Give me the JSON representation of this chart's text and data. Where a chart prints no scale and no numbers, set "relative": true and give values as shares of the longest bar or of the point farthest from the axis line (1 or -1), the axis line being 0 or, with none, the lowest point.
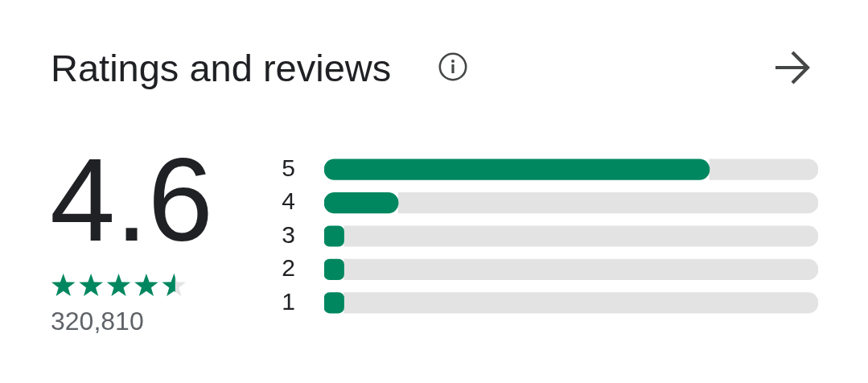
{
  "chart_data": {
    "type": "bar",
    "orientation": "horizontal",
    "stacked": true,
    "relative": true,
    "title": "Ratings and reviews",
    "categories": [
      "5",
      "4",
      "3",
      "2",
      "1"
    ],
    "series": [
      {
        "color": "#01875f",
        "values": [
          0.78,
          0.15,
          0.04,
          0.04,
          0.04
        ]
      },
      {
        "color": "#e3e3e3",
        "values": [
          0.22,
          0.85,
          0.96,
          0.96,
          0.96
        ]
      }
    ],
    "annotations": [
      "4.6",
      "320,810"
    ]
  }
}
